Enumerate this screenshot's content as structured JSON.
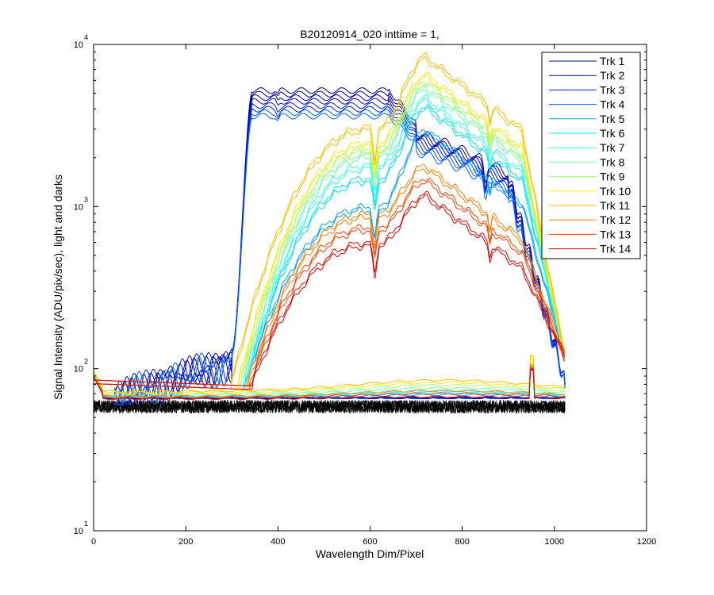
{
  "chart_data": {
    "type": "line",
    "title": "B20120914_020 inttime = 1,",
    "xlabel": "Wavelength Dim/Pixel",
    "ylabel": "Signal Intensity (ADU/pix/sec), light and darks",
    "xlim": [
      0,
      1200
    ],
    "ylim": [
      10,
      10000
    ],
    "yscale": "log",
    "x_ticks": [
      0,
      200,
      400,
      600,
      800,
      1000,
      1200
    ],
    "x_tick_labels": [
      "0",
      "200",
      "400",
      "600",
      "800",
      "1000",
      "1200"
    ],
    "y_tick_values": [
      10,
      100,
      1000,
      10000
    ],
    "y_tick_bases": [
      "10",
      "10",
      "10",
      "10"
    ],
    "y_tick_exponents": [
      "1",
      "2",
      "3",
      "4"
    ],
    "legend_position": "top-right",
    "dark_frames": {
      "name": "darks",
      "color": "#000000",
      "level_min": 53,
      "level_max": 64,
      "x_range": [
        0,
        1023
      ]
    },
    "series": [
      {
        "name": "Trk 1",
        "color": "#00008F",
        "kind": "blue",
        "plateau": 5200,
        "shoulder": 2900,
        "dark_level": 66,
        "x_range": [
          45,
          1023
        ]
      },
      {
        "name": "Trk 2",
        "color": "#0000BF",
        "kind": "blue",
        "plateau": 4700,
        "shoulder": 2700,
        "dark_level": 66,
        "x_range": [
          45,
          1023
        ]
      },
      {
        "name": "Trk 3",
        "color": "#0020DF",
        "kind": "blue",
        "plateau": 4200,
        "shoulder": 2500,
        "dark_level": 66,
        "x_range": [
          45,
          1023
        ]
      },
      {
        "name": "Trk 4",
        "color": "#0060EF",
        "kind": "blue",
        "plateau": 3800,
        "shoulder": 2300,
        "dark_level": 66,
        "x_range": [
          45,
          1023
        ]
      },
      {
        "name": "Trk 5",
        "color": "#00A0FF",
        "kind": "broad",
        "peak": 3000,
        "sec": 1000,
        "start": 330,
        "dark_level": 69,
        "x_range": [
          0,
          1023
        ]
      },
      {
        "name": "Trk 6",
        "color": "#00DFFF",
        "kind": "broad",
        "peak": 4200,
        "sec": 1500,
        "start": 330,
        "dark_level": 71,
        "x_range": [
          0,
          1023
        ]
      },
      {
        "name": "Trk 7",
        "color": "#30FFEF",
        "kind": "broad",
        "peak": 4700,
        "sec": 1800,
        "start": 330,
        "dark_level": 73,
        "x_range": [
          0,
          1023
        ]
      },
      {
        "name": "Trk 8",
        "color": "#70FFB0",
        "kind": "broad",
        "peak": 5500,
        "sec": 2100,
        "start": 325,
        "dark_level": 76,
        "x_range": [
          0,
          1023
        ]
      },
      {
        "name": "Trk 9",
        "color": "#B0FF70",
        "kind": "broad",
        "peak": 6000,
        "sec": 2300,
        "start": 320,
        "dark_level": 79,
        "x_range": [
          0,
          1023
        ]
      },
      {
        "name": "Trk 10",
        "color": "#EFEF10",
        "kind": "broad",
        "peak": 6600,
        "sec": 2500,
        "start": 315,
        "dark_level": 82,
        "x_range": [
          0,
          1023
        ]
      },
      {
        "name": "Trk 11",
        "color": "#FFBF00",
        "kind": "broad",
        "peak": 8500,
        "sec": 3100,
        "start": 300,
        "dark_level": 85,
        "x_range": [
          0,
          1023
        ]
      },
      {
        "name": "Trk 12",
        "color": "#FF8000",
        "kind": "broad",
        "peak": 1800,
        "sec": 900,
        "start": 335,
        "dark_level": 73,
        "x_range": [
          0,
          1023
        ]
      },
      {
        "name": "Trk 13",
        "color": "#FF4000",
        "kind": "broad",
        "peak": 1500,
        "sec": 750,
        "start": 340,
        "dark_level": 70,
        "x_range": [
          0,
          1023
        ]
      },
      {
        "name": "Trk 14",
        "color": "#E00000",
        "kind": "broad",
        "peak": 1200,
        "sec": 600,
        "start": 345,
        "dark_level": 67,
        "x_range": [
          0,
          1023
        ]
      }
    ]
  }
}
